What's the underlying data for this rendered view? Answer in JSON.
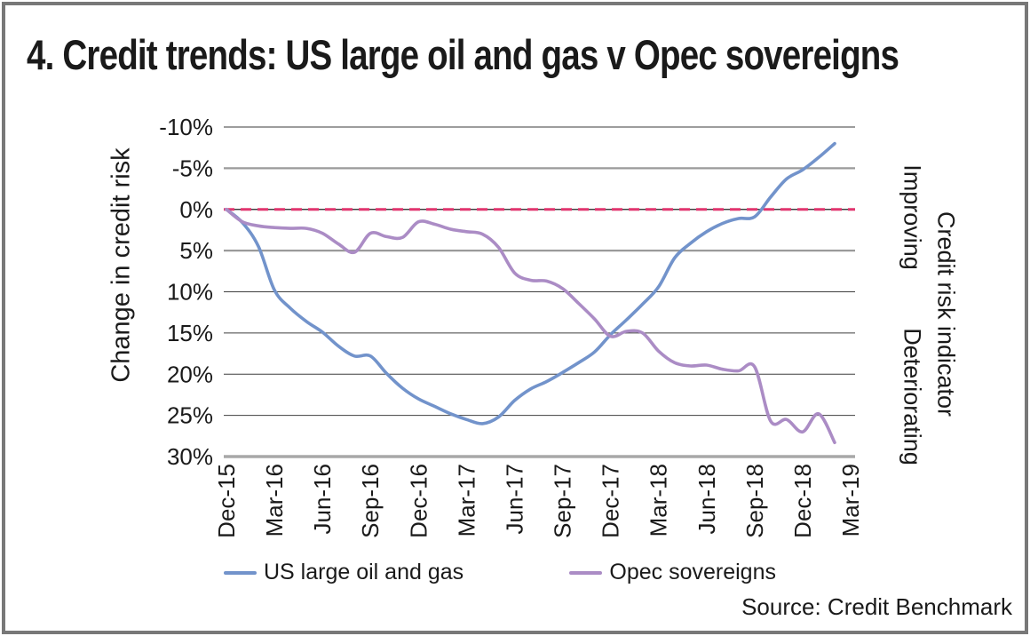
{
  "title": "4. Credit trends: US large oil and gas v Opec sovereigns",
  "source_label": "Source: Credit Benchmark",
  "chart_data": {
    "type": "line",
    "title": "4. Credit trends: US large oil and gas v Opec sovereigns",
    "grid": true,
    "legend_position": "bottom",
    "y_axis": {
      "label": "Change in credit risk",
      "ticks": [
        "-10%",
        "-5%",
        "0%",
        "5%",
        "10%",
        "15%",
        "20%",
        "25%",
        "30%"
      ],
      "tick_values": [
        -10,
        -5,
        0,
        5,
        10,
        15,
        20,
        25,
        30
      ],
      "min": -10,
      "max": 30,
      "inverted": true,
      "unit": "%"
    },
    "x_axis": {
      "ticks": [
        "Dec-15",
        "Mar-16",
        "Jun-16",
        "Sep-16",
        "Dec-16",
        "Mar-17",
        "Jun-17",
        "Sep-17",
        "Dec-17",
        "Mar-18",
        "Jun-18",
        "Sep-18",
        "Dec-18",
        "Mar-19"
      ],
      "tick_interval_months": 3
    },
    "right_axis": {
      "label": "Credit risk indicator",
      "top": "Improving",
      "bottom": "Deteriorating"
    },
    "zero_line": {
      "value": 0,
      "style": "dashed",
      "color": "#e1356f"
    },
    "x": [
      "Dec-15",
      "Jan-16",
      "Feb-16",
      "Mar-16",
      "Apr-16",
      "May-16",
      "Jun-16",
      "Jul-16",
      "Aug-16",
      "Sep-16",
      "Oct-16",
      "Nov-16",
      "Dec-16",
      "Jan-17",
      "Feb-17",
      "Mar-17",
      "Apr-17",
      "May-17",
      "Jun-17",
      "Jul-17",
      "Aug-17",
      "Sep-17",
      "Oct-17",
      "Nov-17",
      "Dec-17",
      "Jan-18",
      "Feb-18",
      "Mar-18",
      "Apr-18",
      "May-18",
      "Jun-18",
      "Jul-18",
      "Aug-18",
      "Sep-18",
      "Oct-18",
      "Nov-18",
      "Dec-18",
      "Jan-19",
      "Feb-19"
    ],
    "series": [
      {
        "name": "US large oil and gas",
        "color": "#7293cb",
        "values": [
          0,
          1.6,
          4.5,
          9.8,
          12.0,
          13.6,
          14.9,
          16.6,
          17.8,
          17.8,
          19.9,
          21.7,
          23.0,
          23.9,
          24.8,
          25.5,
          26.0,
          25.2,
          23.2,
          21.8,
          20.9,
          19.8,
          18.6,
          17.3,
          15.2,
          13.4,
          11.5,
          9.4,
          5.9,
          4.1,
          2.7,
          1.7,
          1.1,
          0.9,
          -1.5,
          -3.7,
          -4.8,
          -6.3,
          -8.0
        ]
      },
      {
        "name": "Opec sovereigns",
        "color": "#ab8cc5",
        "values": [
          0,
          1.5,
          2.0,
          2.2,
          2.3,
          2.3,
          2.9,
          4.2,
          5.2,
          2.9,
          3.3,
          3.4,
          1.5,
          1.8,
          2.4,
          2.7,
          3.0,
          4.6,
          7.7,
          8.6,
          8.7,
          9.6,
          11.4,
          13.3,
          15.4,
          14.8,
          15.0,
          17.2,
          18.6,
          19.0,
          18.9,
          19.4,
          19.6,
          19.1,
          25.7,
          25.5,
          27.0,
          24.8,
          28.3
        ]
      }
    ]
  }
}
